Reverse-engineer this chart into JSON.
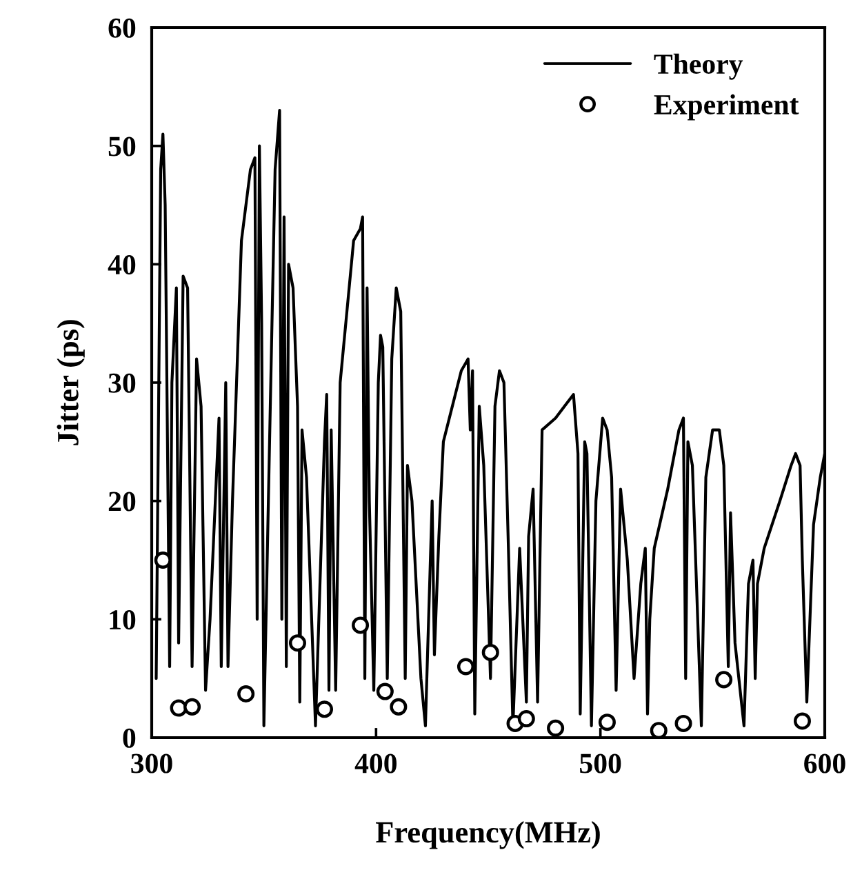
{
  "chart_data": {
    "type": "line",
    "xlabel": "Frequency(MHz)",
    "ylabel": "Jitter (ps)",
    "xlim": [
      300,
      600
    ],
    "xticks": [
      300,
      400,
      500,
      600
    ],
    "ylim": [
      0,
      60
    ],
    "yticks": [
      0,
      10,
      20,
      30,
      40,
      50,
      60
    ],
    "grid": false,
    "legend": "top right",
    "series": [
      {
        "name": "Theory",
        "color": "#000000",
        "marker": "none",
        "line_style": "solid",
        "x": [
          302,
          304,
          305,
          306,
          308,
          309,
          311,
          312,
          314,
          316,
          318,
          320,
          322,
          324,
          326,
          330,
          331,
          333,
          334,
          336,
          340,
          344,
          346,
          347,
          348,
          349,
          350,
          352,
          355,
          357,
          358,
          359,
          360,
          361,
          363,
          365,
          366,
          367,
          369,
          373,
          377,
          378,
          379,
          380,
          382,
          384,
          390,
          393,
          394,
          395,
          396,
          397,
          399,
          401,
          402,
          403,
          405,
          407,
          409,
          411,
          413,
          414,
          416,
          420,
          422,
          425,
          426,
          428,
          430,
          438,
          441,
          442,
          443,
          444,
          446,
          448,
          451,
          453,
          455,
          457,
          459,
          461,
          464,
          467,
          468,
          470,
          472,
          474,
          480,
          484,
          488,
          490,
          491,
          493,
          494,
          496,
          498,
          501,
          503,
          505,
          507,
          509,
          512,
          515,
          518,
          520,
          521,
          522,
          524,
          530,
          535,
          537,
          538,
          539,
          541,
          543,
          545,
          547,
          550,
          553,
          555,
          557,
          558,
          560,
          564,
          566,
          568,
          569,
          570,
          573,
          580,
          585,
          587,
          589,
          590,
          592,
          595,
          598,
          600
        ],
        "values": [
          5,
          48,
          51,
          45,
          6,
          30,
          38,
          8,
          39,
          38,
          6,
          32,
          28,
          4,
          10,
          27,
          6,
          30,
          6,
          20,
          42,
          48,
          49,
          10,
          50,
          35,
          1,
          20,
          48,
          53,
          10,
          44,
          6,
          40,
          38,
          28,
          3,
          26,
          22,
          1,
          25,
          29,
          4,
          26,
          4,
          30,
          42,
          43,
          44,
          5,
          38,
          20,
          4,
          30,
          34,
          33,
          5,
          32,
          38,
          36,
          5,
          23,
          20,
          5,
          1,
          20,
          7,
          17,
          25,
          31,
          32,
          26,
          31,
          2,
          28,
          23,
          5,
          28,
          31,
          30,
          16,
          1,
          16,
          3,
          17,
          21,
          3,
          26,
          27,
          28,
          29,
          24,
          2,
          25,
          24,
          1,
          20,
          27,
          26,
          22,
          4,
          21,
          15,
          5,
          13,
          16,
          2,
          10,
          16,
          21,
          26,
          27,
          5,
          25,
          23,
          12,
          1,
          22,
          26,
          26,
          23,
          6,
          19,
          8,
          1,
          13,
          15,
          5,
          13,
          16,
          20,
          23,
          24,
          23,
          15,
          3,
          18,
          22,
          24
        ]
      },
      {
        "name": "Experiment",
        "type": "scatter",
        "color": "#000000",
        "marker": "circle",
        "x": [
          305,
          312,
          318,
          342,
          365,
          377,
          393,
          404,
          410,
          440,
          451,
          462,
          467,
          480,
          503,
          526,
          537,
          555,
          590
        ],
        "values": [
          15,
          2.5,
          2.6,
          3.7,
          8,
          2.4,
          9.5,
          3.9,
          2.6,
          6,
          7.2,
          1.2,
          1.6,
          0.8,
          1.3,
          0.6,
          1.2,
          4.9,
          1.4
        ]
      }
    ]
  }
}
